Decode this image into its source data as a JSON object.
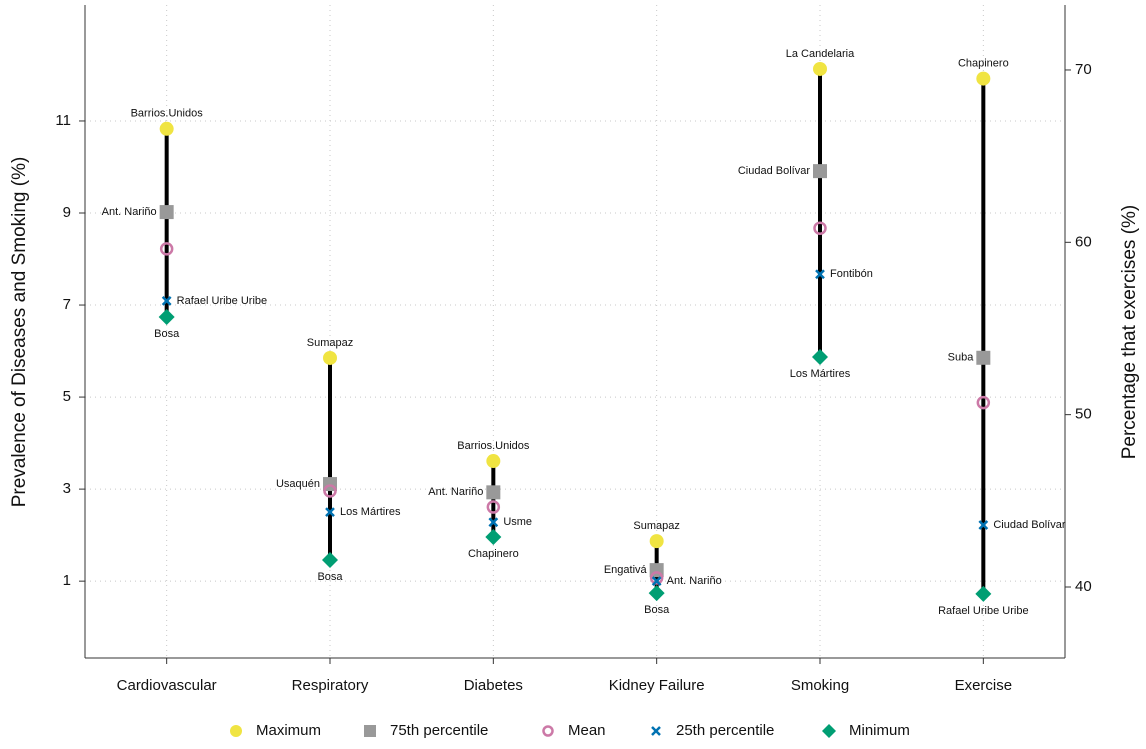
{
  "chart_data": {
    "type": "range-dot",
    "y_label": "Prevalence of Diseases and Smoking (%)",
    "y2_label": "Percentage that exercises (%)",
    "categories": [
      "Cardiovascular",
      "Respiratory",
      "Diabetes",
      "Kidney Failure",
      "Smoking",
      "Exercise"
    ],
    "category_axis": [
      "y",
      "y",
      "y",
      "y",
      "y",
      "y2"
    ],
    "ylim": [
      -0.67,
      13.52
    ],
    "yticks": [
      1,
      3,
      5,
      7,
      9,
      11
    ],
    "y2lim": [
      35.88,
      73.77
    ],
    "y2ticks": [
      40,
      50,
      60,
      70
    ],
    "grid": true,
    "range_color": "#000000",
    "series": [
      {
        "name": "Maximum",
        "marker": "circle",
        "color": "#f0e442",
        "values": [
          10.83,
          5.85,
          3.61,
          1.87,
          12.13,
          69.5
        ],
        "labels": [
          "Barrios.Unidos",
          "Sumapaz",
          "Barrios.Unidos",
          "Sumapaz",
          "La Candelaria",
          "Chapinero"
        ]
      },
      {
        "name": "75th percentile",
        "marker": "square",
        "color": "#999999",
        "values": [
          9.02,
          3.11,
          2.93,
          1.24,
          9.91,
          53.3
        ],
        "labels": [
          "Ant. Nariño",
          "Usaquén",
          "Ant. Nariño",
          "Engativá",
          "Ciudad Bolívar",
          "Suba"
        ]
      },
      {
        "name": "Mean",
        "marker": "ring",
        "color": "#cc79a7",
        "values": [
          8.22,
          2.96,
          2.61,
          1.07,
          8.67,
          50.7
        ],
        "labels": [
          null,
          null,
          null,
          null,
          null,
          null
        ]
      },
      {
        "name": "25th percentile",
        "marker": "cross",
        "color": "#0072b2",
        "values": [
          7.09,
          2.5,
          2.28,
          1.0,
          7.67,
          43.6
        ],
        "labels": [
          "Rafael Uribe Uribe",
          "Los Mártires",
          "Usme",
          "Ant. Nariño",
          "Fontibón",
          "Ciudad Bolívar"
        ]
      },
      {
        "name": "Minimum",
        "marker": "diamond",
        "color": "#009e73",
        "values": [
          6.74,
          1.46,
          1.96,
          0.74,
          5.87,
          39.6
        ],
        "labels": [
          "Bosa",
          "Bosa",
          "Chapinero",
          "Bosa",
          "Los Mártires",
          "Rafael Uribe Uribe"
        ]
      }
    ]
  }
}
